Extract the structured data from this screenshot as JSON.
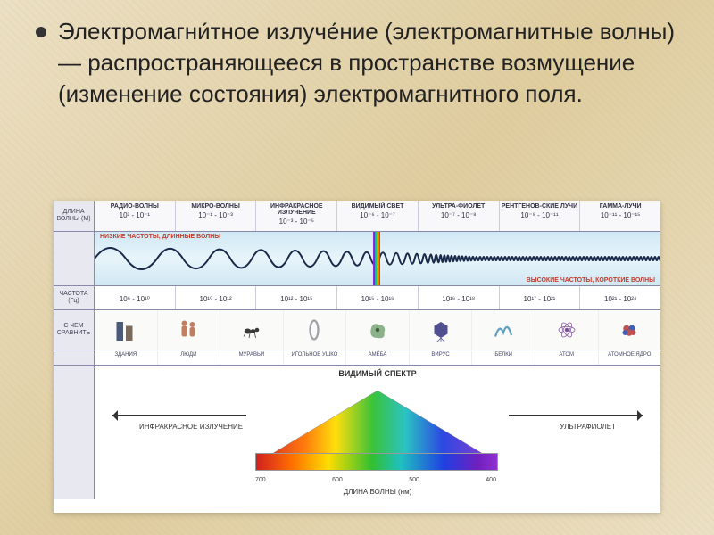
{
  "heading": "Электромагни́тное излуче́ние (электромагнитные волны) — распространяющееся в пространстве возмущение (изменение состояния) электромагнитного поля.",
  "row_labels": {
    "wavelength": "ДЛИНА ВОЛНЫ (М)",
    "wave": "",
    "frequency": "ЧАСТОТА (Гц)",
    "compare": "С ЧЕМ СРАВНИТЬ",
    "compare_labels": "",
    "prism": ""
  },
  "bands": [
    {
      "name": "РАДИО-ВОЛНЫ",
      "wavelength": "10³ - 10⁻¹",
      "frequency": "10⁶ - 10¹⁰"
    },
    {
      "name": "МИКРО-ВОЛНЫ",
      "wavelength": "10⁻¹ - 10⁻³",
      "frequency": "10¹⁰ - 10¹²"
    },
    {
      "name": "ИНФРАКРАСНОЕ ИЗЛУЧЕНИЕ",
      "wavelength": "10⁻³ - 10⁻⁵",
      "frequency": "10¹² - 10¹⁵"
    },
    {
      "name": "ВИДИМЫЙ СВЕТ",
      "wavelength": "10⁻⁶ - 10⁻⁷",
      "frequency": "10¹⁵ - 10¹⁶"
    },
    {
      "name": "УЛЬТРА-ФИОЛЕТ",
      "wavelength": "10⁻⁷ - 10⁻⁸",
      "frequency": "10¹⁶ - 10¹⁸"
    },
    {
      "name": "РЕНТГЕНОВ-СКИЕ ЛУЧИ",
      "wavelength": "10⁻⁹ - 10⁻¹¹",
      "frequency": "10¹⁷ - 10²¹"
    },
    {
      "name": "ГАММА-ЛУЧИ",
      "wavelength": "10⁻¹¹ - 10⁻¹⁵",
      "frequency": "10²¹ - 10²⁴"
    }
  ],
  "freq_low_label": "НИЗКИЕ ЧАСТОТЫ, ДЛИННЫЕ ВОЛНЫ",
  "freq_high_label": "ВЫСОКИЕ ЧАСТОТЫ, КОРОТКИЕ ВОЛНЫ",
  "compare_items": [
    {
      "label": "ЗДАНИЯ",
      "color1": "#4a5a7a",
      "color2": "#7a6a5a"
    },
    {
      "label": "ЛЮДИ",
      "color1": "#c08060",
      "color2": "#c08060"
    },
    {
      "label": "МУРАВЬИ",
      "color1": "#3a3a3a",
      "color2": "#3a3a3a"
    },
    {
      "label": "ИГОЛЬНОЕ УШКО",
      "color1": "#a0a0a8",
      "color2": "#a0a0a8"
    },
    {
      "label": "АМЁБА",
      "color1": "#70a070",
      "color2": "#70a070"
    },
    {
      "label": "ВИРУС",
      "color1": "#505090",
      "color2": "#505090"
    },
    {
      "label": "БЕЛКИ",
      "color1": "#60a0c0",
      "color2": "#60a0c0"
    },
    {
      "label": "АТОМ",
      "color1": "#8050a0",
      "color2": "#8050a0"
    },
    {
      "label": "АТОМНОЕ ЯДРО",
      "color1": "#c05050",
      "color2": "#4060b0"
    }
  ],
  "prism": {
    "title": "ВИДИМЫЙ СПЕКТР",
    "ir_label": "ИНФРАКРАСНОЕ ИЗЛУЧЕНИЕ",
    "uv_label": "УЛЬТРАФИОЛЕТ",
    "axis_label": "ДЛИНА ВОЛНЫ (нм)",
    "ticks": [
      "700",
      "600",
      "500",
      "400"
    ],
    "spectrum_colors": [
      "#d02020",
      "#ff7000",
      "#ffdd00",
      "#30c030",
      "#20c0c0",
      "#2040e0",
      "#7020c0",
      "#9030d0"
    ]
  },
  "wave_geometry": {
    "stroke": "#1a2a4a",
    "stroke_width": 2
  },
  "spectrum_strip_left_pct": 49.2
}
